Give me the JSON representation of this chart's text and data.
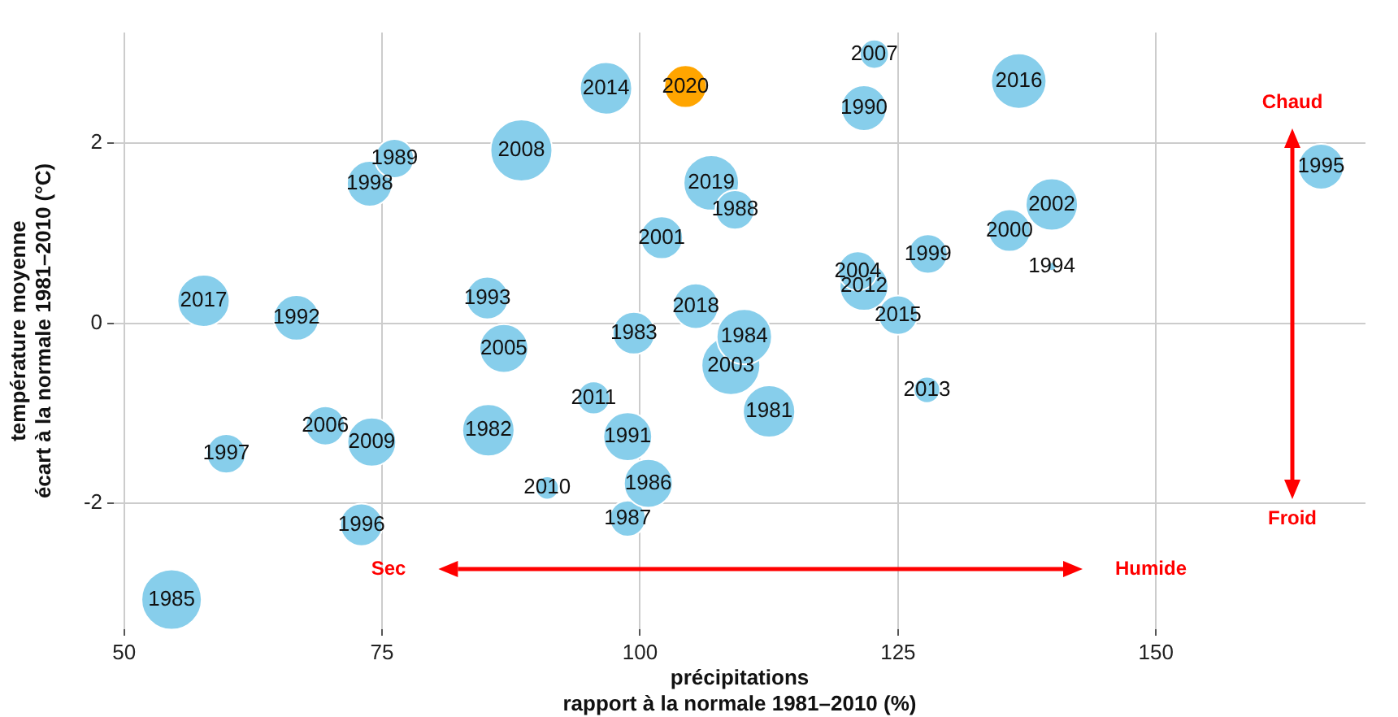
{
  "chart_data": {
    "type": "bubble",
    "xlabel": "précipitations\nrapport à la normale 1981–2010 (%)",
    "ylabel": "température moyenne\nécart à la normale 1981–2010 (°C)",
    "xlim": [
      49,
      170.3
    ],
    "ylim": [
      -3.4,
      3.23
    ],
    "xticks": [
      50,
      75,
      100,
      125,
      150
    ],
    "yticks": [
      -2,
      0,
      2
    ],
    "grid": true,
    "legend": false,
    "annotations": [
      "Sec",
      "Humide",
      "Chaud",
      "Froid"
    ],
    "series": [
      {
        "name": "1981",
        "color": "#87ceeb",
        "x": [
          112.5
        ],
        "values": [
          -0.98
        ],
        "sizes": [
          0.71
        ]
      },
      {
        "name": "1982",
        "color": "#87ceeb",
        "x": [
          85.3
        ],
        "values": [
          -1.19
        ],
        "sizes": [
          0.71
        ]
      },
      {
        "name": "1983",
        "color": "#87ceeb",
        "x": [
          99.4
        ],
        "values": [
          -0.11
        ],
        "sizes": [
          0.47
        ]
      },
      {
        "name": "1984",
        "color": "#87ceeb",
        "x": [
          110.1
        ],
        "values": [
          -0.15
        ],
        "sizes": [
          0.8
        ]
      },
      {
        "name": "1985",
        "color": "#87ceeb",
        "x": [
          54.6
        ],
        "values": [
          -3.07
        ],
        "sizes": [
          0.95
        ]
      },
      {
        "name": "1986",
        "color": "#87ceeb",
        "x": [
          100.8
        ],
        "values": [
          -1.78
        ],
        "sizes": [
          0.62
        ]
      },
      {
        "name": "1987",
        "color": "#87ceeb",
        "x": [
          98.8
        ],
        "values": [
          -2.17
        ],
        "sizes": [
          0.34
        ]
      },
      {
        "name": "1988",
        "color": "#87ceeb",
        "x": [
          109.2
        ],
        "values": [
          1.26
        ],
        "sizes": [
          0.4
        ]
      },
      {
        "name": "1989",
        "color": "#87ceeb",
        "x": [
          76.2
        ],
        "values": [
          1.83
        ],
        "sizes": [
          0.4
        ]
      },
      {
        "name": "1990",
        "color": "#87ceeb",
        "x": [
          121.7
        ],
        "values": [
          2.39
        ],
        "sizes": [
          0.54
        ]
      },
      {
        "name": "1991",
        "color": "#87ceeb",
        "x": [
          98.8
        ],
        "values": [
          -1.26
        ],
        "sizes": [
          0.62
        ]
      },
      {
        "name": "1992",
        "color": "#87ceeb",
        "x": [
          66.7
        ],
        "values": [
          0.06
        ],
        "sizes": [
          0.54
        ]
      },
      {
        "name": "1993",
        "color": "#87ceeb",
        "x": [
          85.2
        ],
        "values": [
          0.28
        ],
        "sizes": [
          0.47
        ]
      },
      {
        "name": "1994",
        "color": "#87ceeb",
        "x": [
          139.9
        ],
        "values": [
          0.63
        ],
        "sizes": [
          0.02
        ]
      },
      {
        "name": "1995",
        "color": "#87ceeb",
        "x": [
          166.0
        ],
        "values": [
          1.74
        ],
        "sizes": [
          0.54
        ]
      },
      {
        "name": "1996",
        "color": "#87ceeb",
        "x": [
          73.0
        ],
        "values": [
          -2.24
        ],
        "sizes": [
          0.47
        ]
      },
      {
        "name": "1997",
        "color": "#87ceeb",
        "x": [
          59.9
        ],
        "values": [
          -1.45
        ],
        "sizes": [
          0.4
        ]
      },
      {
        "name": "1998",
        "color": "#87ceeb",
        "x": [
          73.8
        ],
        "values": [
          1.55
        ],
        "sizes": [
          0.54
        ]
      },
      {
        "name": "1999",
        "color": "#87ceeb",
        "x": [
          127.9
        ],
        "values": [
          0.77
        ],
        "sizes": [
          0.4
        ]
      },
      {
        "name": "2000",
        "color": "#87ceeb",
        "x": [
          135.8
        ],
        "values": [
          1.03
        ],
        "sizes": [
          0.47
        ]
      },
      {
        "name": "2001",
        "color": "#87ceeb",
        "x": [
          102.1
        ],
        "values": [
          0.95
        ],
        "sizes": [
          0.47
        ]
      },
      {
        "name": "2002",
        "color": "#87ceeb",
        "x": [
          139.9
        ],
        "values": [
          1.32
        ],
        "sizes": [
          0.71
        ]
      },
      {
        "name": "2003",
        "color": "#87ceeb",
        "x": [
          108.8
        ],
        "values": [
          -0.47
        ],
        "sizes": [
          0.9
        ]
      },
      {
        "name": "2004",
        "color": "#87ceeb",
        "x": [
          121.1
        ],
        "values": [
          0.58
        ],
        "sizes": [
          0.4
        ]
      },
      {
        "name": "2005",
        "color": "#87ceeb",
        "x": [
          86.8
        ],
        "values": [
          -0.28
        ],
        "sizes": [
          0.62
        ]
      },
      {
        "name": "2006",
        "color": "#87ceeb",
        "x": [
          69.5
        ],
        "values": [
          -1.14
        ],
        "sizes": [
          0.4
        ]
      },
      {
        "name": "2007",
        "color": "#87ceeb",
        "x": [
          122.7
        ],
        "values": [
          2.99
        ],
        "sizes": [
          0.22
        ]
      },
      {
        "name": "2008",
        "color": "#87ceeb",
        "x": [
          88.5
        ],
        "values": [
          1.92
        ],
        "sizes": [
          1
        ]
      },
      {
        "name": "2009",
        "color": "#87ceeb",
        "x": [
          74.0
        ],
        "values": [
          -1.32
        ],
        "sizes": [
          0.62
        ]
      },
      {
        "name": "2010",
        "color": "#87ceeb",
        "x": [
          91.0
        ],
        "values": [
          -1.83
        ],
        "sizes": [
          0.14
        ]
      },
      {
        "name": "2011",
        "color": "#87ceeb",
        "x": [
          95.5
        ],
        "values": [
          -0.83
        ],
        "sizes": [
          0.28
        ]
      },
      {
        "name": "2012",
        "color": "#87ceeb",
        "x": [
          121.7
        ],
        "values": [
          0.41
        ],
        "sizes": [
          0.62
        ]
      },
      {
        "name": "2013",
        "color": "#87ceeb",
        "x": [
          127.8
        ],
        "values": [
          -0.74
        ],
        "sizes": [
          0.18
        ]
      },
      {
        "name": "2014",
        "color": "#87ceeb",
        "x": [
          96.7
        ],
        "values": [
          2.61
        ],
        "sizes": [
          0.71
        ]
      },
      {
        "name": "2015",
        "color": "#87ceeb",
        "x": [
          125.0
        ],
        "values": [
          0.09
        ],
        "sizes": [
          0.4
        ]
      },
      {
        "name": "2016",
        "color": "#87ceeb",
        "x": [
          136.7
        ],
        "values": [
          2.69
        ],
        "sizes": [
          0.8
        ]
      },
      {
        "name": "2017",
        "color": "#87ceeb",
        "x": [
          57.7
        ],
        "values": [
          0.25
        ],
        "sizes": [
          0.71
        ]
      },
      {
        "name": "2018",
        "color": "#87ceeb",
        "x": [
          105.4
        ],
        "values": [
          0.19
        ],
        "sizes": [
          0.54
        ]
      },
      {
        "name": "2019",
        "color": "#87ceeb",
        "x": [
          106.9
        ],
        "values": [
          1.56
        ],
        "sizes": [
          0.8
        ]
      },
      {
        "name": "2020",
        "color": "#ffa500",
        "x": [
          104.4
        ],
        "values": [
          2.63
        ],
        "sizes": [
          0.47
        ]
      }
    ]
  }
}
